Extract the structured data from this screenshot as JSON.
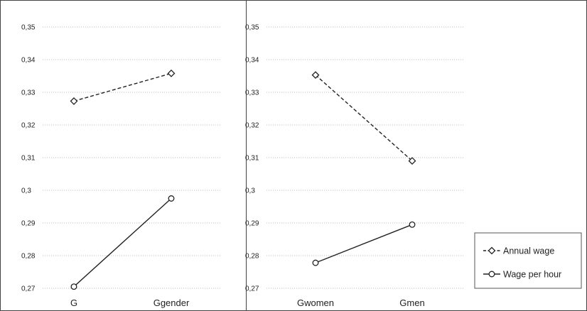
{
  "chart_data": [
    {
      "type": "line",
      "categories": [
        "G",
        "Ggender"
      ],
      "ylim": [
        0.27,
        0.35
      ],
      "yticks": [
        0.27,
        0.28,
        0.29,
        0.3,
        0.31,
        0.32,
        0.33,
        0.34,
        0.35
      ],
      "ytick_labels": [
        "0,27",
        "0,28",
        "0,29",
        "0,3",
        "0,31",
        "0,32",
        "0,33",
        "0,34",
        "0,35"
      ],
      "grid": true,
      "series": [
        {
          "name": "Annual wage",
          "values": [
            0.3273,
            0.3358
          ],
          "style": "dashed",
          "marker": "diamond"
        },
        {
          "name": "Wage per hour",
          "values": [
            0.2705,
            0.2975
          ],
          "style": "solid",
          "marker": "circle"
        }
      ]
    },
    {
      "type": "line",
      "categories": [
        "Gwomen",
        "Gmen"
      ],
      "ylim": [
        0.27,
        0.35
      ],
      "yticks": [
        0.27,
        0.28,
        0.29,
        0.3,
        0.31,
        0.32,
        0.33,
        0.34,
        0.35
      ],
      "ytick_labels": [
        "0,27",
        "0,28",
        "0,29",
        "0,3",
        "0,31",
        "0,32",
        "0,33",
        "0,34",
        "0,35"
      ],
      "grid": true,
      "series": [
        {
          "name": "Annual wage",
          "values": [
            0.3353,
            0.309
          ],
          "style": "dashed",
          "marker": "diamond"
        },
        {
          "name": "Wage per hour",
          "values": [
            0.2778,
            0.2895
          ],
          "style": "solid",
          "marker": "circle"
        }
      ]
    }
  ],
  "legend": {
    "placement": "bottom-right",
    "items": [
      "Annual wage",
      "Wage per hour"
    ]
  },
  "colors": {
    "line": "#222222",
    "grid": "#b0b0b0",
    "border": "#444444"
  }
}
